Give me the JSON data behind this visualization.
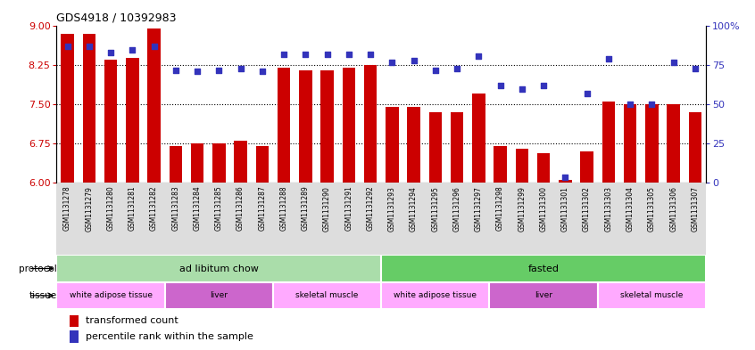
{
  "title": "GDS4918 / 10392983",
  "samples": [
    "GSM1131278",
    "GSM1131279",
    "GSM1131280",
    "GSM1131281",
    "GSM1131282",
    "GSM1131283",
    "GSM1131284",
    "GSM1131285",
    "GSM1131286",
    "GSM1131287",
    "GSM1131288",
    "GSM1131289",
    "GSM1131290",
    "GSM1131291",
    "GSM1131292",
    "GSM1131293",
    "GSM1131294",
    "GSM1131295",
    "GSM1131296",
    "GSM1131297",
    "GSM1131298",
    "GSM1131299",
    "GSM1131300",
    "GSM1131301",
    "GSM1131302",
    "GSM1131303",
    "GSM1131304",
    "GSM1131305",
    "GSM1131306",
    "GSM1131307"
  ],
  "red_values": [
    8.85,
    8.85,
    8.35,
    8.4,
    8.95,
    6.7,
    6.75,
    6.75,
    6.8,
    6.7,
    8.2,
    8.15,
    8.15,
    8.2,
    8.25,
    7.45,
    7.45,
    7.35,
    7.35,
    7.7,
    6.7,
    6.65,
    6.55,
    6.05,
    6.6,
    7.55,
    7.5,
    7.5,
    7.5,
    7.35
  ],
  "blue_values": [
    87,
    87,
    83,
    85,
    87,
    72,
    71,
    72,
    73,
    71,
    82,
    82,
    82,
    82,
    82,
    77,
    78,
    72,
    73,
    81,
    62,
    60,
    62,
    3,
    57,
    79,
    50,
    50,
    77,
    73
  ],
  "ylim_left": [
    6.0,
    9.0
  ],
  "ylim_right": [
    0,
    100
  ],
  "yticks_left": [
    6.0,
    6.75,
    7.5,
    8.25,
    9.0
  ],
  "yticks_right": [
    0,
    25,
    50,
    75,
    100
  ],
  "ytick_labels_right": [
    "0",
    "25",
    "50",
    "75",
    "100%"
  ],
  "bar_color": "#cc0000",
  "dot_color": "#3333bb",
  "bar_bottom": 6.0,
  "grid_lines": [
    6.75,
    7.5,
    8.25
  ],
  "xtick_bg_color": "#dddddd",
  "protocol_groups": [
    {
      "label": "ad libitum chow",
      "start": 0,
      "end": 15,
      "color": "#aaddaa"
    },
    {
      "label": "fasted",
      "start": 15,
      "end": 30,
      "color": "#66cc66"
    }
  ],
  "tissue_groups": [
    {
      "label": "white adipose tissue",
      "start": 0,
      "end": 5,
      "color": "#ffaaff"
    },
    {
      "label": "liver",
      "start": 5,
      "end": 10,
      "color": "#cc66cc"
    },
    {
      "label": "skeletal muscle",
      "start": 10,
      "end": 15,
      "color": "#ffaaff"
    },
    {
      "label": "white adipose tissue",
      "start": 15,
      "end": 20,
      "color": "#ffaaff"
    },
    {
      "label": "liver",
      "start": 20,
      "end": 25,
      "color": "#cc66cc"
    },
    {
      "label": "skeletal muscle",
      "start": 25,
      "end": 30,
      "color": "#ffaaff"
    }
  ],
  "legend_red_label": "transformed count",
  "legend_blue_label": "percentile rank within the sample",
  "bar_width": 0.6
}
